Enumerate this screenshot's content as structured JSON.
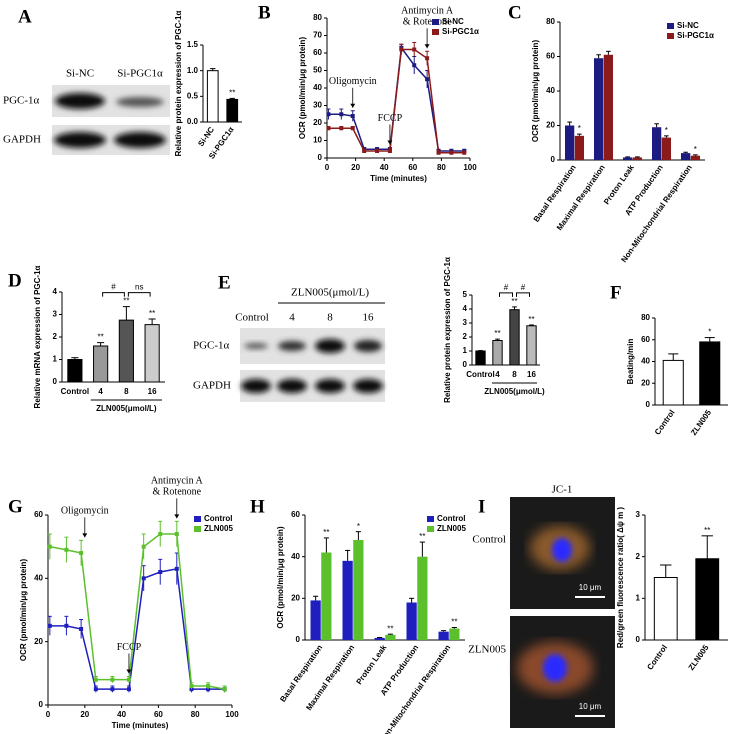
{
  "panel_labels": [
    "A",
    "B",
    "C",
    "D",
    "E",
    "F",
    "G",
    "H",
    "I"
  ],
  "blots": [
    {
      "lanes": [
        "Si-NC",
        "Si-PGC1α"
      ],
      "rows": [
        "PGC-1α",
        "GAPDH"
      ]
    },
    {
      "header": "ZLN005(μmol/L)",
      "lanes": [
        "Control",
        "4",
        "8",
        "16"
      ],
      "rows": [
        "PGC-1α",
        "GAPDH"
      ]
    }
  ],
  "micrograph": {
    "title": "JC-1",
    "rows": [
      "Control",
      "ZLN005"
    ],
    "scale_bars": [
      "10 μm",
      "10 μm"
    ]
  },
  "chart_data": [
    {
      "type": "bar",
      "ylabel": "Relative protein expression of PGC-1α",
      "categories": [
        "Si-NC",
        "Si-PGC1α"
      ],
      "values": [
        1.0,
        0.44
      ],
      "errors": [
        0.04,
        0.02
      ],
      "colors": [
        "#ffffff",
        "#000000"
      ],
      "significance": [
        null,
        "**"
      ],
      "ylim": [
        0,
        1.5
      ],
      "yticks": [
        {
          "value": 0,
          "label": "0.0"
        },
        {
          "value": 0.5,
          "label": "0.5"
        },
        {
          "value": 1,
          "label": "1.0"
        },
        {
          "value": 1.5,
          "label": "1.5"
        }
      ],
      "rotate_labels": true
    },
    {
      "type": "line",
      "xlabel": "Time (minutes)",
      "ylabel": "OCR (pmol/min/μg protein)",
      "x": [
        1,
        10,
        18,
        26,
        35,
        44,
        52,
        61,
        70,
        78,
        87,
        96
      ],
      "series": [
        {
          "name": "Si-NC",
          "color": "#1c1c80",
          "values": [
            25,
            25,
            24,
            5,
            5,
            5,
            63,
            53,
            45,
            4,
            4,
            4
          ],
          "errors": [
            3,
            3,
            3,
            1,
            1,
            1,
            2,
            5,
            5,
            1,
            1,
            1
          ]
        },
        {
          "name": "Si-PGC1α",
          "color": "#8b1a1a",
          "values": [
            17,
            17,
            17,
            4,
            4,
            4,
            62,
            62,
            57,
            3,
            3,
            3
          ],
          "errors": [
            1,
            1,
            1,
            1,
            1,
            1,
            3,
            4,
            4,
            1,
            1,
            1
          ]
        }
      ],
      "annotations": [
        {
          "text": [
            "Oligomycin"
          ],
          "x": 18
        },
        {
          "text": [
            "FCCP"
          ],
          "x": 44
        },
        {
          "text": [
            "Antimycin A",
            "& Rotenone"
          ],
          "x": 70
        }
      ],
      "xlim": [
        0,
        100
      ],
      "xticks": [
        0,
        20,
        40,
        60,
        80,
        100
      ],
      "ylim": [
        0,
        80
      ],
      "yticks": [
        0,
        10,
        20,
        30,
        40,
        50,
        60,
        70,
        80
      ],
      "legend": "upper right"
    },
    {
      "type": "bar",
      "ylabel": "OCR (pmol/min/μg protein)",
      "categories": [
        "Basal Respiration",
        "Maximal Respiration",
        "Proton Leak",
        "ATP Production",
        "Non-Mitochondrial Respiration"
      ],
      "series": [
        {
          "name": "Si-NC",
          "color": "#1c1c80",
          "values": [
            20,
            59,
            1.5,
            19,
            4
          ],
          "errors": [
            2,
            2,
            0.3,
            2,
            0.5
          ],
          "significance": [
            null,
            null,
            null,
            null,
            null
          ]
        },
        {
          "name": "Si-PGC1α",
          "color": "#8b1a1a",
          "values": [
            14,
            61,
            1.5,
            13,
            2.5
          ],
          "errors": [
            1,
            2,
            0.3,
            1,
            0.5
          ],
          "significance": [
            "*",
            null,
            null,
            "*",
            "*"
          ]
        }
      ],
      "ylim": [
        0,
        80
      ],
      "yticks": [
        0,
        20,
        40,
        60,
        80
      ],
      "rotate_labels": true,
      "legend": "upper right"
    },
    {
      "type": "bar",
      "ylabel": "Relative mRNA expression of PGC-1α",
      "categories": [
        "Control",
        "4",
        "8",
        "16"
      ],
      "values": [
        1.0,
        1.6,
        2.75,
        2.55
      ],
      "errors": [
        0.08,
        0.15,
        0.6,
        0.25
      ],
      "colors": [
        "#000000",
        "#999999",
        "#555555",
        "#cccccc"
      ],
      "significance": [
        null,
        "**",
        "**",
        "**"
      ],
      "brackets": [
        {
          "from": 1,
          "to": 2,
          "label": "#"
        },
        {
          "from": 2,
          "to": 3,
          "label": "ns"
        }
      ],
      "x_group": {
        "label": "ZLN005(μmol/L)",
        "from": 1,
        "to": 3
      },
      "ylim": [
        0,
        4
      ],
      "yticks": [
        0,
        1,
        2,
        3,
        4
      ]
    },
    {
      "type": "bar",
      "ylabel": "Relative protein expression of PGC-1α",
      "categories": [
        "Control",
        "4",
        "8",
        "16"
      ],
      "values": [
        1.0,
        1.75,
        3.95,
        2.8
      ],
      "errors": [
        0.03,
        0.1,
        0.2,
        0.06
      ],
      "colors": [
        "#000000",
        "#aaaaaa",
        "#444444",
        "#bbbbbb"
      ],
      "significance": [
        null,
        "**",
        "**",
        "**"
      ],
      "brackets": [
        {
          "from": 1,
          "to": 2,
          "label": "#"
        },
        {
          "from": 2,
          "to": 3,
          "label": "#"
        }
      ],
      "x_group": {
        "label": "ZLN005(μmol/L)",
        "from": 1,
        "to": 3
      },
      "ylim": [
        0,
        5
      ],
      "yticks": [
        0,
        1,
        2,
        3,
        4,
        5
      ]
    },
    {
      "type": "bar",
      "ylabel": "Beating/min",
      "categories": [
        "Control",
        "ZLN005"
      ],
      "values": [
        41,
        58
      ],
      "errors": [
        6,
        4
      ],
      "colors": [
        "#ffffff",
        "#000000"
      ],
      "significance": [
        null,
        "*"
      ],
      "ylim": [
        0,
        80
      ],
      "yticks": [
        0,
        20,
        40,
        60,
        80
      ],
      "rotate_labels": true
    },
    {
      "type": "line",
      "xlabel": "Time (minutes)",
      "ylabel": "OCR (pmol/min/μg protein)",
      "x": [
        1,
        10,
        18,
        26,
        35,
        44,
        52,
        61,
        70,
        78,
        87,
        96
      ],
      "series": [
        {
          "name": "Control",
          "color": "#1f1fbf",
          "values": [
            25,
            25,
            24,
            5,
            5,
            5,
            40,
            42,
            43,
            5,
            5,
            5
          ],
          "errors": [
            3,
            3,
            3,
            1,
            1,
            1,
            4,
            4,
            5,
            1,
            1,
            1
          ]
        },
        {
          "name": "ZLN005",
          "color": "#5cc02c",
          "values": [
            50,
            49,
            48,
            8,
            8,
            8,
            50,
            54,
            54,
            6,
            6,
            5
          ],
          "errors": [
            4,
            4,
            4,
            1,
            1,
            1,
            4,
            4,
            4,
            1,
            1,
            1
          ]
        }
      ],
      "annotations": [
        {
          "text": [
            "Oligomycin"
          ],
          "x": 20
        },
        {
          "text": [
            "FCCP"
          ],
          "x": 44
        },
        {
          "text": [
            "Antimycin A",
            "& Rotenone"
          ],
          "x": 70
        }
      ],
      "xlim": [
        0,
        100
      ],
      "xticks": [
        0,
        20,
        40,
        60,
        80,
        100
      ],
      "ylim": [
        0,
        60
      ],
      "yticks": [
        0,
        20,
        40,
        60
      ],
      "legend": "upper right"
    },
    {
      "type": "bar",
      "ylabel": "OCR (pmol/min/μg protein)",
      "categories": [
        "Basal Respiration",
        "Maximal Respiration",
        "Proton Leak",
        "ATP Production",
        "Non-Mitochondrial Respiration"
      ],
      "series": [
        {
          "name": "Control",
          "color": "#1f1fbf",
          "values": [
            19,
            38,
            1,
            18,
            4
          ],
          "errors": [
            2,
            5,
            0.2,
            2,
            0.5
          ],
          "significance": [
            null,
            null,
            null,
            null,
            null
          ]
        },
        {
          "name": "ZLN005",
          "color": "#5cc02c",
          "values": [
            42,
            48,
            2.5,
            40,
            5.5
          ],
          "errors": [
            7,
            4,
            0.3,
            7,
            0.5
          ],
          "significance": [
            "**",
            "*",
            "**",
            "**",
            "**"
          ]
        }
      ],
      "ylim": [
        0,
        60
      ],
      "yticks": [
        0,
        20,
        40,
        60
      ],
      "rotate_labels": true,
      "legend": "upper right"
    },
    {
      "type": "bar",
      "ylabel": "Red/green fluorescence ratio( Δψ m )",
      "categories": [
        "Control",
        "ZLN005"
      ],
      "values": [
        1.5,
        1.95
      ],
      "errors": [
        0.3,
        0.55
      ],
      "colors": [
        "#ffffff",
        "#000000"
      ],
      "significance": [
        null,
        "**"
      ],
      "ylim": [
        0,
        3
      ],
      "yticks": [
        0,
        1,
        2,
        3
      ],
      "rotate_labels": true
    }
  ]
}
